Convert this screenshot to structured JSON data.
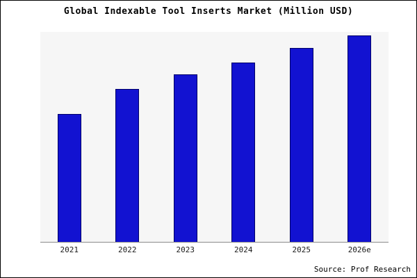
{
  "title": "Global Indexable Tool Inserts Market (Million USD)",
  "source": "Source: Prof Research",
  "colors": {
    "bar_fill": "#1212d1",
    "bar_border": "#000066",
    "plot_bg": "#f6f6f6",
    "axis": "#8a8a8a",
    "frame_border": "#000000"
  },
  "chart_data": {
    "type": "bar",
    "categories": [
      "2021",
      "2022",
      "2023",
      "2024",
      "2025",
      "2026e"
    ],
    "values": [
      62,
      74,
      81,
      87,
      94,
      100
    ],
    "title": "Global Indexable Tool Inserts Market (Million USD)",
    "xlabel": "",
    "ylabel": "",
    "ylim": [
      0,
      102
    ],
    "grid": false,
    "legend": null,
    "annotations": [
      "Source: Prof Research"
    ]
  }
}
